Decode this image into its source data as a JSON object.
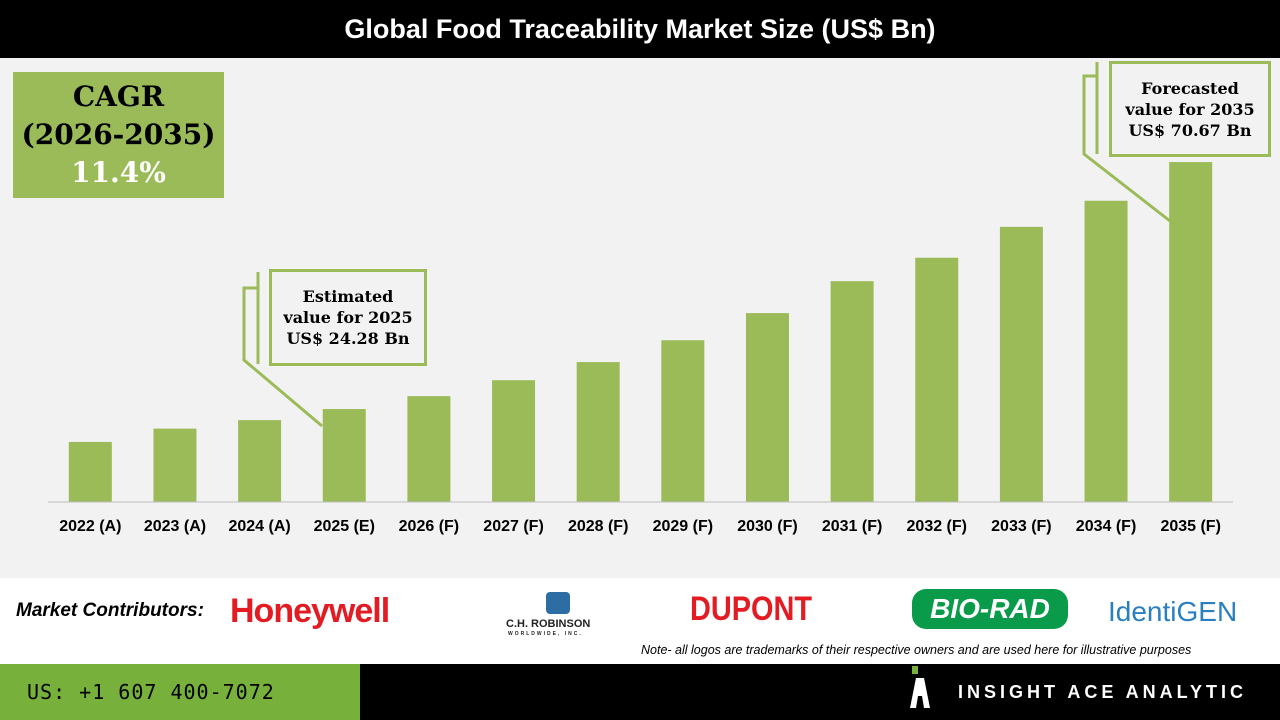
{
  "chart_data": {
    "type": "bar",
    "title": "Global Food Traceability Market Size (US$ Bn)",
    "categories": [
      "2022 (A)",
      "2023 (A)",
      "2024 (A)",
      "2025 (E)",
      "2026 (F)",
      "2027 (F)",
      "2028 (F)",
      "2029 (F)",
      "2030 (F)",
      "2031 (F)",
      "2032 (F)",
      "2033 (F)",
      "2034 (F)",
      "2035 (F)"
    ],
    "values": [
      18.1,
      20.6,
      22.2,
      24.28,
      26.7,
      29.7,
      33.1,
      37.2,
      42.3,
      48.3,
      52.7,
      58.5,
      63.4,
      70.67
    ],
    "xlabel": "",
    "ylabel": "",
    "bar_color": "#9bbb59",
    "grid": false,
    "annotations": {
      "cagr": {
        "line1": "CAGR",
        "line2": "(2026-2035)",
        "value": "11.4%"
      },
      "estimated": {
        "line1": "Estimated",
        "line2": "value for 2025",
        "line3": "US$ 24.28 Bn"
      },
      "forecasted": {
        "line1": "Forecasted",
        "line2": "value for 2035",
        "line3": "US$ 70.67 Bn"
      }
    }
  },
  "contributors": {
    "label": "Market Contributors:",
    "logos": [
      "Honeywell",
      "C.H. ROBINSON",
      "WORLDWIDE, INC.",
      "DUPONT",
      "BIO-RAD",
      "IdentiGEN"
    ],
    "note": "Note- all logos are trademarks of their respective owners and are used here for illustrative purposes"
  },
  "footer": {
    "phone": "US: +1 607 400-7072",
    "brand": "INSIGHT ACE ANALYTIC"
  }
}
